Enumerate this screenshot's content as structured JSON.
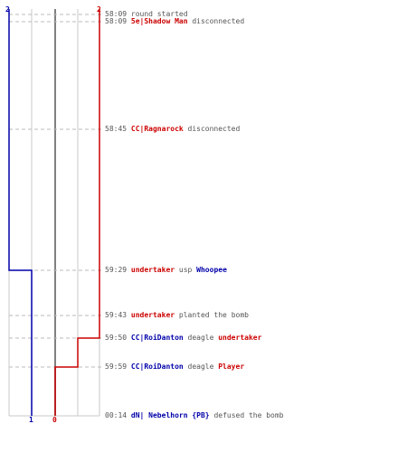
{
  "axis": {
    "top_left": "2",
    "top_right": "2",
    "bottom_blue": "1",
    "bottom_red": "0"
  },
  "colors": {
    "blue_team": "#0000aa",
    "red_team": "#cc0000",
    "time_text": "#555555",
    "grid": "#c8c8c8"
  },
  "events": [
    {
      "time": "58:09",
      "parts": [
        {
          "text": "round started",
          "style": "plain"
        }
      ]
    },
    {
      "time": "58:09",
      "parts": [
        {
          "text": "5e|Shadow Man",
          "style": "red"
        },
        {
          "text": " disconnected",
          "style": "plain"
        }
      ]
    },
    {
      "time": "58:45",
      "parts": [
        {
          "text": "CC|Ragnarock",
          "style": "red"
        },
        {
          "text": " disconnected",
          "style": "plain"
        }
      ]
    },
    {
      "time": "59:29",
      "parts": [
        {
          "text": "undertaker",
          "style": "red"
        },
        {
          "text": " usp ",
          "style": "plain"
        },
        {
          "text": "Whoopee",
          "style": "blue"
        }
      ]
    },
    {
      "time": "59:43",
      "parts": [
        {
          "text": "undertaker",
          "style": "red"
        },
        {
          "text": " planted the bomb",
          "style": "plain"
        }
      ]
    },
    {
      "time": "59:50",
      "parts": [
        {
          "text": "CC|RoiDanton",
          "style": "blue"
        },
        {
          "text": " deagle ",
          "style": "plain"
        },
        {
          "text": "undertaker",
          "style": "red"
        }
      ]
    },
    {
      "time": "59:59",
      "parts": [
        {
          "text": "CC|RoiDanton",
          "style": "blue"
        },
        {
          "text": " deagle ",
          "style": "plain"
        },
        {
          "text": "Player",
          "style": "red"
        }
      ]
    },
    {
      "time": "00:14",
      "parts": [
        {
          "text": "dN| Nebelhorn",
          "style": "blue"
        },
        {
          "text": " {PB}",
          "style": "blue"
        },
        {
          "text": " defused the bomb",
          "style": "plain"
        }
      ]
    }
  ]
}
